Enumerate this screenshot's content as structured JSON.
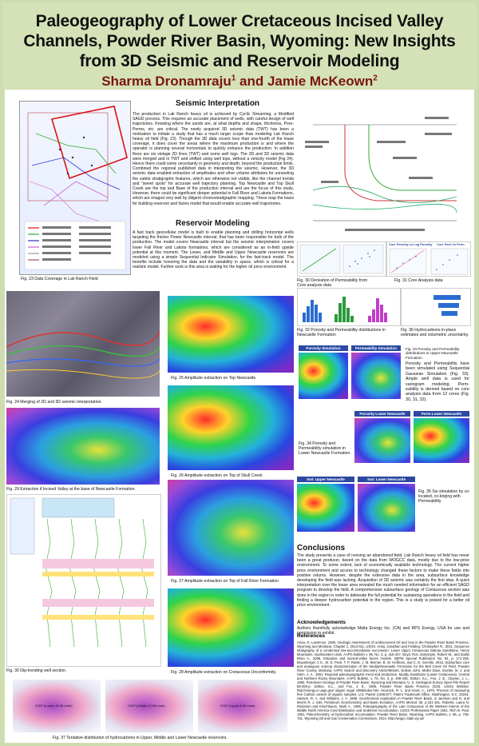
{
  "header": {
    "title": "Paleogeography of Lower Cretaceous Incised Valley Channels, Powder River Basin, Wyoming: New Insights from 3D Seismic and Reservoir Modeling",
    "authors": "Sharma Dronamraju",
    "author1_sup": "1",
    "authors_and": " and Jamie McKeown",
    "author2_sup": "2"
  },
  "sections": {
    "seismic_title": "Seismic Interpretation",
    "seismic_text": "The production in Lak Ranch heavy oil is achieved by Cyclic Streaming, a Modified SAGD process. This requires an accurate placement of wells, with careful design of well trajectories. Knowing where the sands are, at what depths and shape, thickness, Pore-Perms, etc. are critical. The newly acquired 3D seismic data (TWT) has been a motivation to initiate a study that has a much larger scope than modeling Lak Ranch heavy oil field (Fig. 23). Though the 3D data covers less than one-fourth of the lease coverage, it does cover the areas where the maximum production is and where the operator is planning several horizontals to quickly enhance the production. In addition there are six vintage 2D lines (TWT) and some well logs. The 2D and 3D seismic data were merged and in TWT and shifted using well tops, without a velocity model (Fig 24). Hence there could some uncertainty in geometry and depth, beyond the production limits. Combined the regional published data in interpreting the seismic. However, the 3D seismic data enabled extraction of amplitudes and other volume attributes for unraveling the subtle stratigraphic features, which are otherwise not visible, like the channel trends and \"sweet spots\" for accurate well trajectory planning. Top Newcastle and Top Skull Creek are the top and Base of the production interval and are the focus of this study. However, there could be significant deeper potential in Fall River and Lakota Formations, which are imaged very well by diligent chronostratigraphic mapping. These map the basis for building reservoir and facies model that would enable accurate well trajectories.",
    "reservoir_title": "Reservoir Modeling",
    "reservoir_text": "A fast track geocellular model is built to enable planning and drilling horizontal wells targeting the thicker Power Newcastle interval, that has been responsible for bulk of the production. The model covers Newcastle interval but the seismic interpretation covers lower Fall River and Lakota formations, which are considered as an in-field upside potential at this moment. The Lower, and Middle and Upper Newcastle reservoirs are modeled using a simple Sequential Indicator Simulation, for the fast-track model. The benefits include honoring the data and the variability in space, which is critical for a realistic model. Further work is this area is waiting for the higher oil price environment.",
    "conclusions_title": "Conclusions",
    "conclusions_text": "The study presents a case of reviving an abandoned field. Lak Ranch heavy oil field has never been a great producer, based on the data from WOGCC data, mostly due to the low-price environment. To some extent, lack of economically available technology. The current higher price environment and access to technology changed these factors to make these fields into positive returns. However, despite the extensive data in the area, subsurface knowledge developing the field was lacking. Acquisition of 3D seismic was certainly the first step. A quick interpretation over the lease area revealed the much needed information for an efficient SAGD program to develop the field. A comprehensive subsurface geology of Cretaceous section was done in the region in order to delineate the full potential for sustaining operations in the field and finding a deeper hydrocarbon potential in the region. This is a study is poised for a better oil price environment.",
    "ack_title": "Acknowledgements",
    "ack_text": "Authors thankfully acknowledge Malta Energy Inc. (CA) and RPS Energy, USA for use and permission to exhibit.",
    "ref_title": "References",
    "ref_text": "Anna, O. Lawrence, 1990, Geologic Assessment of Undiscovered Oil and Gas in the Powder River Basin Province, Wyoming and Montana. Chapter 1, 2014-011, USGS. Anita, Jonathan and Fielding, Christopher R., 2011, Sequence stratigraphy of a condensed low-accommodation succession: Lower Upper Cretaceous Dakota Sandstone, Henry Mountains, southeastern Utah. AAPG Bulletin v. 95, No. 3, p. 415-447. Boyd, Ron, Dalrymple, Robert W., and Zaitlin Brian A., 2006, Estuarine and incised-valley facies models. SEPM Special Publication No. 84, p. 171-235. Braunberger J. K., M. D. Peck, T. P. Ruble, J. M. Bremer, B. W. Huffman, and C. D. Gnerski, 2015, Subsurface core and analogous outcrop characterization of the Muddy/Newcastle Formation for the Bell Creek Oil Field, Powder River County, Montana, AAPG Search and Discovery Article#50184. Dolson John, Muller Dave, Evetter, M. J. and Stein, J. A., 1991, Regional paleotopographic trend and production, Muddy Sandstone (Lower Cretaceous), Central and Northern Rocky Mountains, AAPG Bulletin, v. 75, No. 3, p. 409-435. Dolton, G.L., Fox, J. E., Clayton, J. L., 1990, Petroleum Geology of Powder River Basin, Wyoming and Montana: U. S. Geological Survey Open-File Report 88-450-p. Dolton, G.L., and Fox, J. E., 1995, Powder River Basin Province (033). USGS Website: http://energy.cr.usgs.gov/ oilgas/ noga/ 1995/index.htm. Heacock, R. L. and Hood, A., 1970, Process of measuring free Carbon content of organic samples: U.S. Patent 3,508,877, Patent Trademark Office, Washington, D.C. 20231. Hasson, R. A. and Williams, J. A. 1988, Geochemical exploration in Powder River Basin, in Jamison and G. and Morris R. J. Eds, Petroleum Geochemistry and Basin Evolution, AAPG Memoir 35, p.181-191. Roberts, Laura N. Robinson and Kirschbaum, Mark A., 1995, Paleogeography of the Late Cretaceous of the Western Interior of the Middle North America-Coal Distribution and Sediment Accumulation, USGS Professional Paper 1561. Rich B. Paul, 1981, Paleochemistry oil hydrocarbon accumulation: Powder River Basin, Wyoming, AAPG Bulletin, v. 65, p. 736-761. Wyoming Oil and Gas Conservation Commission, 2014, http://wogcc.state.wy.us/"
  },
  "captions": {
    "fig23": "Fig. 23 Data Coverage in Lak Ranch Field",
    "fig24": "Fig. 24 Merging of 2D and 3D seismic interpretation.",
    "fig25": "Fig. 25 Amplitude extraction on Top Newcastle",
    "fig26": "Fig. 26 Amplitude extraction on Top of Skull Creek",
    "fig27": "Fig. 27 Amplitude extraction on Top of Fall River Formation",
    "fig28": "Fig. 28 Amplitude extraction on Cretaceous Unconformity.",
    "fig29": "Fig. 29 Extraction if Incised Valley at the base of Newcastle Formation.",
    "fig30dip": "Fig. 30 Dip-trending well section.",
    "fig30perm": "Fig. 30 Derivation of Permeability from Core analysis data",
    "fig31": "Fig. 31 Core Analysis data",
    "fig32": "Fig. 32 Porosity and Permeability distributions in Newcastle Formation",
    "fig33": "Fig. 33 Porosity and Permeability distributions in Upper Newcastle Formation",
    "fig34": "Fig. 34 Porosity and Permeability simulation in Lower Newcastle Formation.",
    "fig35": "Fig. 35 Sw simulation by co-located, co-kriging with Permeability",
    "fig36": "Fig. 36 Hydrocarbons in-place estimates and volumetric uncertainty.",
    "fig37": "Fig. 37 Tentative distribution of hydrocarbons in Upper, Middle and Lower Newcastle reservoirs.",
    "fig33_text": "Porosity and Permeability have been simulated using Sequential Gaussian Simulation (Fig. 33). Ample well data is used for variogram modeling. Perm-eability is derived based on core analysis data from 12 cores (Fig. 30, 31, 32)."
  },
  "panel_labels": {
    "porosity_sim": "Porosity Simulation",
    "perm_sim": "Permeability Simulation",
    "porosity_lower": "Porosity-Lower Newcastle",
    "perm_lower": "Perm-Lower Newcastle",
    "sw_upper": "Swi: Upper Newcastle",
    "sw_lower": "Swi: Lower Newcastle",
    "core_porosity": "Core Porosity vs Log Porosity",
    "core_poro_perm": "Core Poro Vs Perm",
    "ooip1": "OOIP (Lower, 45.08 mmb)",
    "ooip2": "OOIP (Middle 10.08 mmb)",
    "ooip3": "OOIP (Upper 8.08 mmb)"
  },
  "colors": {
    "header_bg": "#d5e2b7",
    "author_color": "#7a1414",
    "panel_tab": "#2b49a0"
  }
}
